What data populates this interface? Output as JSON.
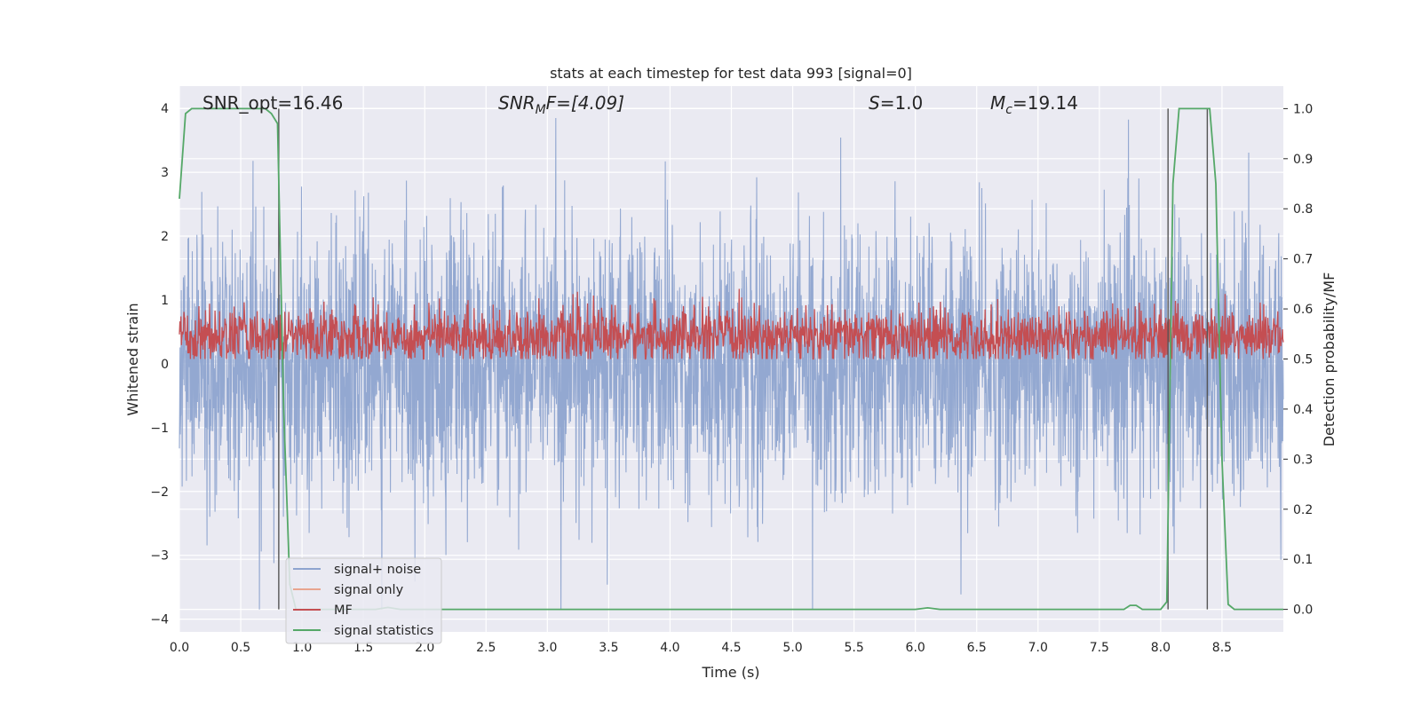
{
  "chart_data": {
    "type": "line",
    "title": "stats at each timestep for test data 993 [signal=0]",
    "xlabel": "Time (s)",
    "ylabel": "Whitened strain",
    "y2label": "Detection probability/MF",
    "xlim": [
      0.0,
      9.0
    ],
    "ylim": [
      -4.2,
      4.35
    ],
    "y2lim": [
      -0.045,
      1.045
    ],
    "xticks": [
      "0.0",
      "0.5",
      "1.0",
      "1.5",
      "2.0",
      "2.5",
      "3.0",
      "3.5",
      "4.0",
      "4.5",
      "5.0",
      "5.5",
      "6.0",
      "6.5",
      "7.0",
      "7.5",
      "8.0",
      "8.5"
    ],
    "yticks": [
      "4",
      "3",
      "2",
      "1",
      "0",
      "−1",
      "−2",
      "−3",
      "−4"
    ],
    "y2ticks": [
      "1.0",
      "0.9",
      "0.8",
      "0.7",
      "0.6",
      "0.5",
      "0.4",
      "0.3",
      "0.2",
      "0.1",
      "0.0"
    ],
    "grid": true,
    "legend_position": "lower-left",
    "annotations": {
      "snr_opt": "SNR_opt=16.46",
      "snr_mf_base": "SNR",
      "snr_mf_sub": "M",
      "snr_mf_rest": "F=[4.09]",
      "s_base": "S",
      "s_rest": "=1.0",
      "mc_base": "M",
      "mc_sub": "c",
      "mc_rest": "=19.14"
    },
    "series": [
      {
        "name": "signal+ noise",
        "color": "#8ea4cf",
        "description_values": "noise, roughly ±2.5 with peaks to ±3.8"
      },
      {
        "name": "signal only",
        "color": "#e8a58f"
      },
      {
        "name": "MF",
        "color": "#c44e52"
      },
      {
        "name": "signal statistics",
        "color": "#55a868",
        "x": [
          0.0,
          0.05,
          0.1,
          0.15,
          0.2,
          0.3,
          0.4,
          0.5,
          0.6,
          0.7,
          0.75,
          0.8,
          0.85,
          0.9,
          0.95,
          1.0,
          1.5,
          1.6,
          1.7,
          1.8,
          2.0,
          3.0,
          4.0,
          5.0,
          6.0,
          6.1,
          6.2,
          6.5,
          7.0,
          7.5,
          7.7,
          7.75,
          7.8,
          7.85,
          7.9,
          8.0,
          8.05,
          8.1,
          8.15,
          8.2,
          8.25,
          8.3,
          8.35,
          8.4,
          8.45,
          8.5,
          8.55,
          8.6,
          8.7,
          8.8,
          8.9,
          9.0
        ],
        "values": [
          0.82,
          0.99,
          1.0,
          1.0,
          1.0,
          1.0,
          1.0,
          1.0,
          1.0,
          1.0,
          0.99,
          0.97,
          0.4,
          0.05,
          0.0,
          0.0,
          0.0,
          0.0,
          0.004,
          0.0,
          0.0,
          0.0,
          0.0,
          0.0,
          0.0,
          0.003,
          0.0,
          0.0,
          0.0,
          0.0,
          0.0,
          0.008,
          0.008,
          0.0,
          0.0,
          0.0,
          0.015,
          0.85,
          1.0,
          1.0,
          1.0,
          1.0,
          1.0,
          1.0,
          0.85,
          0.3,
          0.01,
          0.0,
          0.0,
          0.0,
          0.0,
          0.0
        ]
      }
    ],
    "vertical_markers_x": [
      0.81,
      8.06,
      8.38
    ]
  },
  "legend": {
    "items": [
      {
        "label": "signal+ noise",
        "color": "#8ea4cf"
      },
      {
        "label": "signal only",
        "color": "#e8a58f"
      },
      {
        "label": "MF",
        "color": "#c44e52"
      },
      {
        "label": "signal statistics",
        "color": "#55a868"
      }
    ]
  }
}
